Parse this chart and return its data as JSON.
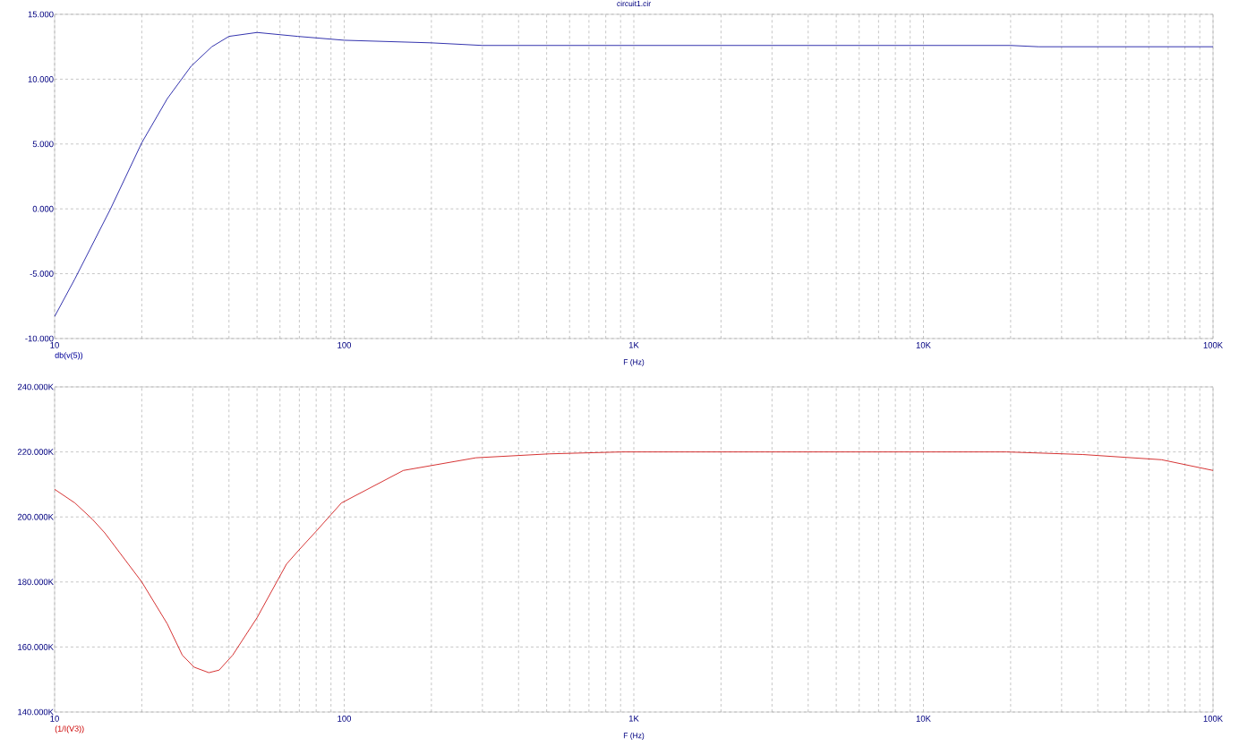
{
  "chart_data": [
    {
      "type": "line",
      "title": "circuit1.cir",
      "xlabel": "F (Hz)",
      "log": "x",
      "grid": true,
      "line_style": "solid",
      "x": [
        10,
        11.75,
        15.6,
        20,
        24.5,
        29.6,
        34.9,
        40,
        50,
        69,
        100,
        200,
        300,
        1000,
        10000,
        20000,
        25000,
        100000
      ],
      "series": [
        {
          "name": "db(v(5))",
          "color": "#000099",
          "values": [
            -8.3,
            -5.4,
            0,
            5.1,
            8.5,
            11,
            12.5,
            13.3,
            13.6,
            13.3,
            13,
            12.8,
            12.6,
            12.6,
            12.6,
            12.6,
            12.5,
            12.5
          ]
        }
      ],
      "xlim": [
        10,
        100000
      ],
      "ylim": [
        -10,
        15
      ],
      "xticks": [
        10,
        100,
        {
          "value": 1000,
          "label": "1K"
        },
        {
          "value": 10000,
          "label": "10K"
        },
        {
          "value": 100000,
          "label": "100K"
        }
      ],
      "yticks": [
        {
          "value": -10,
          "label": "-10.000"
        },
        {
          "value": -5,
          "label": "-5.000"
        },
        {
          "value": 0,
          "label": "0.000"
        },
        {
          "value": 5,
          "label": "5.000"
        },
        {
          "value": 10,
          "label": "10.000"
        },
        {
          "value": 15,
          "label": "15.000"
        }
      ]
    },
    {
      "type": "line",
      "xlabel": "F (Hz)",
      "log": "x",
      "grid": true,
      "line_style": "solid",
      "x": [
        10,
        11.75,
        13.5,
        14.9,
        20,
        24.5,
        27.6,
        30.3,
        34.1,
        37,
        41.2,
        50,
        63.2,
        69.4,
        80,
        90,
        97.8,
        160,
        285,
        510,
        910,
        19400,
        35500,
        66400,
        100000
      ],
      "series": [
        {
          "name": "(1/I(V3))",
          "color": "#cc0000",
          "values": [
            208500,
            204300,
            199300,
            195100,
            180000,
            167100,
            157500,
            153800,
            152100,
            152900,
            157500,
            169000,
            185500,
            189600,
            195600,
            200700,
            204300,
            214300,
            218200,
            219400,
            220000,
            220000,
            219200,
            217600,
            214300
          ]
        }
      ],
      "xlim": [
        10,
        100000
      ],
      "ylim": [
        140000,
        240000
      ],
      "xticks": [
        10,
        100,
        {
          "value": 1000,
          "label": "1K"
        },
        {
          "value": 10000,
          "label": "10K"
        },
        {
          "value": 100000,
          "label": "100K"
        }
      ],
      "yticks": [
        {
          "value": 140000,
          "label": "140.000K"
        },
        {
          "value": 160000,
          "label": "160.000K"
        },
        {
          "value": 180000,
          "label": "180.000K"
        },
        {
          "value": 200000,
          "label": "200.000K"
        },
        {
          "value": 220000,
          "label": "220.000K"
        },
        {
          "value": 240000,
          "label": "240.000K"
        }
      ]
    }
  ]
}
